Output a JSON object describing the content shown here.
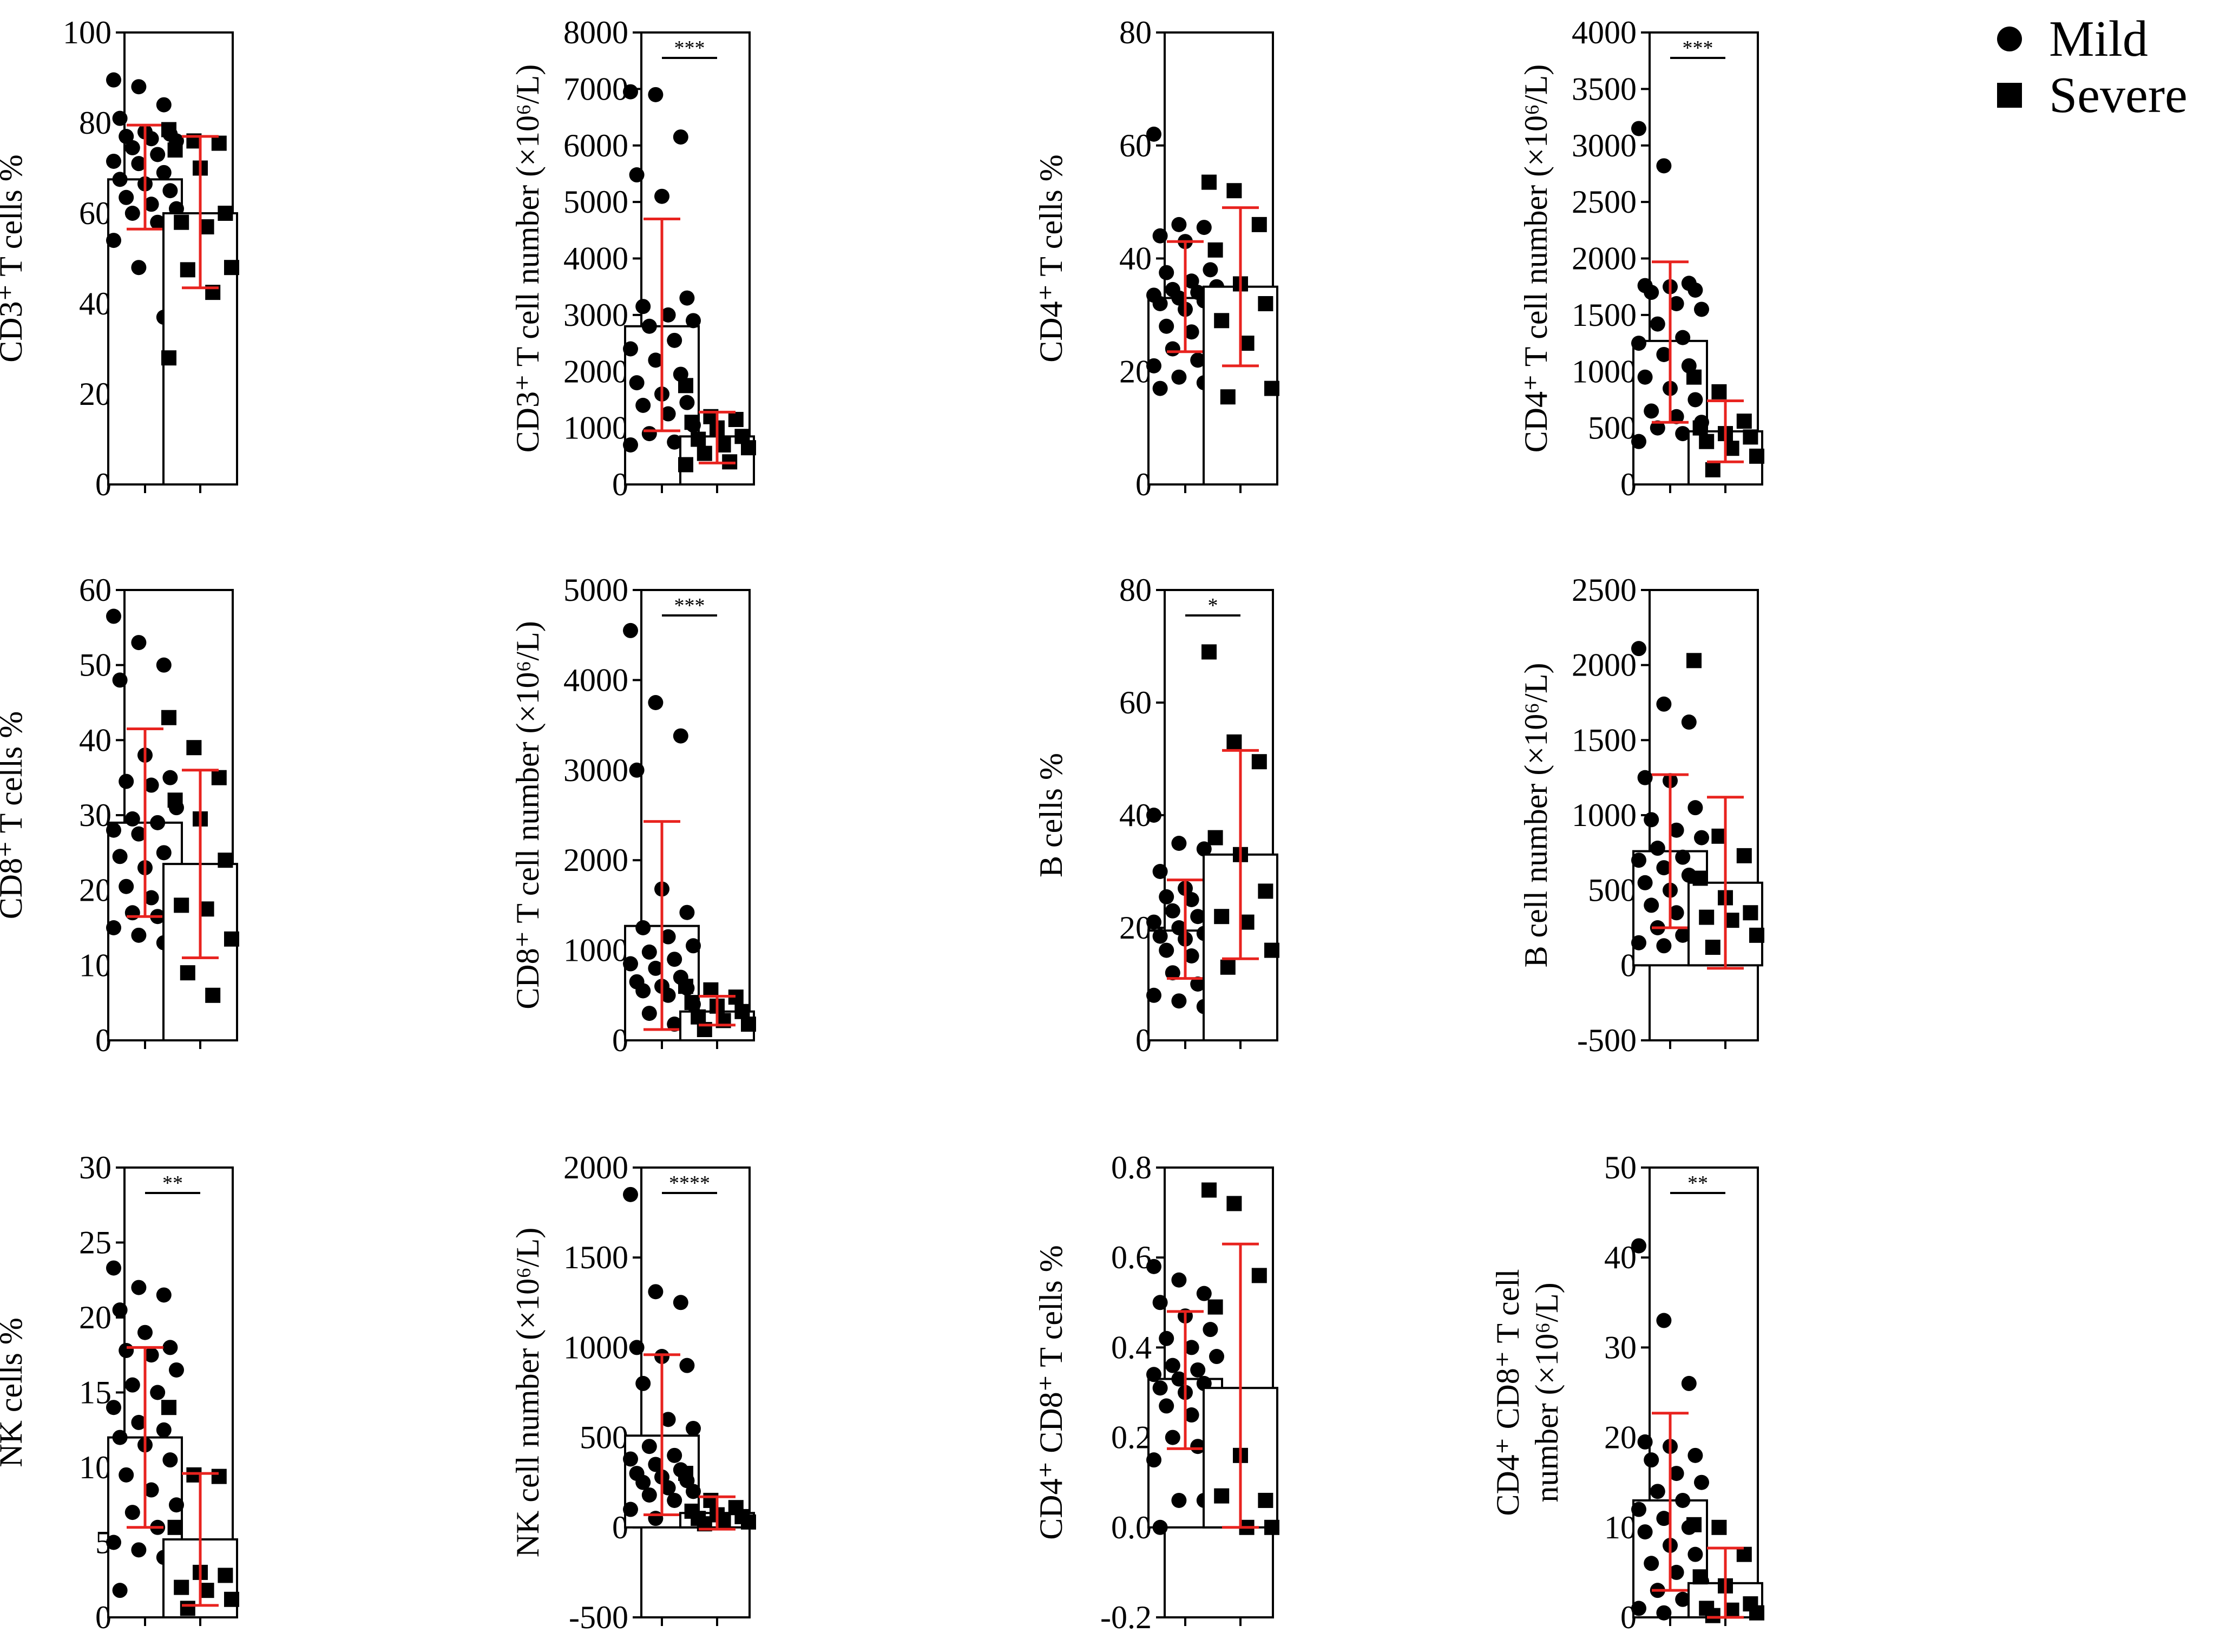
{
  "legend": {
    "mild_label": "Mild",
    "severe_label": "Severe"
  },
  "chart_data": [
    {
      "type": "bar",
      "ylabel": "CD3⁺ T cells %",
      "ylim": [
        0,
        100
      ],
      "ticks": [
        0,
        20,
        40,
        60,
        80,
        100
      ],
      "tick_labels": [
        "0",
        "20",
        "40",
        "60",
        "80",
        "100"
      ],
      "series": [
        {
          "name": "Mild",
          "mean": 67.5,
          "sd_low": 56.5,
          "sd_high": 79.5,
          "points": [
            89.5,
            88,
            84,
            81,
            78,
            77.5,
            77,
            76.5,
            76,
            74.5,
            73,
            71.5,
            71,
            69,
            67.5,
            66.5,
            65,
            63.5,
            62,
            61,
            60,
            58,
            54,
            48,
            37
          ]
        },
        {
          "name": "Severe",
          "mean": 60,
          "sd_low": 43.5,
          "sd_high": 77,
          "points": [
            78.5,
            76,
            75.5,
            74,
            70,
            60,
            58,
            57,
            48,
            47.5,
            42.5,
            28
          ]
        }
      ],
      "significance": ""
    },
    {
      "type": "bar",
      "ylabel": "CD3⁺ T cell number (×10⁶/L)",
      "ylim": [
        0,
        8000
      ],
      "ticks": [
        0,
        1000,
        2000,
        3000,
        4000,
        5000,
        6000,
        7000,
        8000
      ],
      "tick_labels": [
        "0",
        "1000",
        "2000",
        "3000",
        "4000",
        "5000",
        "6000",
        "7000",
        "8000"
      ],
      "series": [
        {
          "name": "Mild",
          "mean": 2800,
          "sd_low": 950,
          "sd_high": 4700,
          "points": [
            6950,
            6900,
            6150,
            5480,
            5100,
            3300,
            3150,
            3000,
            2900,
            2800,
            2550,
            2400,
            2200,
            1950,
            1800,
            1600,
            1450,
            1400,
            1250,
            1050,
            900,
            750,
            700
          ]
        },
        {
          "name": "Severe",
          "mean": 850,
          "sd_low": 380,
          "sd_high": 1280,
          "points": [
            1750,
            1200,
            1150,
            1100,
            1000,
            850,
            800,
            700,
            650,
            550,
            400,
            350
          ]
        }
      ],
      "significance": "***"
    },
    {
      "type": "bar",
      "ylabel": "CD4⁺ T cells %",
      "ylim": [
        0,
        80
      ],
      "ticks": [
        0,
        20,
        40,
        60,
        80
      ],
      "tick_labels": [
        "0",
        "20",
        "40",
        "60",
        "80"
      ],
      "series": [
        {
          "name": "Mild",
          "mean": 33,
          "sd_low": 23.5,
          "sd_high": 43,
          "points": [
            62,
            46,
            45.5,
            44,
            43,
            38,
            37.5,
            36,
            35,
            34.5,
            34,
            33.5,
            33,
            32.5,
            32,
            31,
            30,
            28,
            27,
            25,
            24,
            22,
            21,
            19,
            18,
            17
          ]
        },
        {
          "name": "Severe",
          "mean": 35,
          "sd_low": 21,
          "sd_high": 49,
          "points": [
            53.5,
            52,
            46,
            41.5,
            35.5,
            32,
            29,
            25,
            17,
            15.5
          ]
        }
      ],
      "significance": ""
    },
    {
      "type": "bar",
      "ylabel": "CD4⁺ T cell number (×10⁶/L)",
      "ylim": [
        0,
        4000
      ],
      "ticks": [
        0,
        500,
        1000,
        1500,
        2000,
        2500,
        3000,
        3500,
        4000
      ],
      "tick_labels": [
        "0",
        "500",
        "1000",
        "1500",
        "2000",
        "2500",
        "3000",
        "3500",
        "4000"
      ],
      "series": [
        {
          "name": "Mild",
          "mean": 1270,
          "sd_low": 550,
          "sd_high": 1970,
          "points": [
            3150,
            2820,
            1780,
            1760,
            1750,
            1720,
            1700,
            1600,
            1550,
            1420,
            1300,
            1250,
            1150,
            1050,
            950,
            850,
            750,
            650,
            600,
            550,
            500,
            450,
            380
          ]
        },
        {
          "name": "Severe",
          "mean": 470,
          "sd_low": 200,
          "sd_high": 740,
          "points": [
            950,
            820,
            560,
            500,
            450,
            420,
            380,
            320,
            250,
            130
          ]
        }
      ],
      "significance": "***"
    },
    {
      "type": "bar",
      "ylabel": "CD8⁺ T cells %",
      "ylim": [
        0,
        60
      ],
      "ticks": [
        0,
        10,
        20,
        30,
        40,
        50,
        60
      ],
      "tick_labels": [
        "0",
        "10",
        "20",
        "30",
        "40",
        "50",
        "60"
      ],
      "series": [
        {
          "name": "Mild",
          "mean": 29,
          "sd_low": 16.5,
          "sd_high": 41.5,
          "points": [
            56.5,
            53,
            50,
            48,
            38,
            35,
            34.5,
            34,
            31,
            29.5,
            29,
            28,
            27.5,
            25,
            24.5,
            23,
            22,
            20.5,
            19,
            18,
            17,
            16.5,
            15,
            14,
            13
          ]
        },
        {
          "name": "Severe",
          "mean": 23.5,
          "sd_low": 11,
          "sd_high": 36,
          "points": [
            43,
            39,
            35,
            32,
            29.5,
            24,
            18,
            17.5,
            13.5,
            9,
            6
          ]
        }
      ],
      "significance": ""
    },
    {
      "type": "bar",
      "ylabel": "CD8⁺ T cell number (×10⁶/L)",
      "ylim": [
        0,
        5000
      ],
      "ticks": [
        0,
        1000,
        2000,
        3000,
        4000,
        5000
      ],
      "tick_labels": [
        "0",
        "1000",
        "2000",
        "3000",
        "4000",
        "5000"
      ],
      "series": [
        {
          "name": "Mild",
          "mean": 1270,
          "sd_low": 120,
          "sd_high": 2430,
          "points": [
            4550,
            3750,
            3380,
            3000,
            1680,
            1420,
            1250,
            1150,
            1050,
            980,
            900,
            850,
            800,
            700,
            650,
            600,
            580,
            550,
            500,
            400,
            300,
            180
          ]
        },
        {
          "name": "Severe",
          "mean": 320,
          "sd_low": 170,
          "sd_high": 490,
          "points": [
            600,
            560,
            480,
            420,
            380,
            320,
            260,
            220,
            180,
            120
          ]
        }
      ],
      "significance": "***"
    },
    {
      "type": "bar",
      "ylabel": "B cells %",
      "ylim": [
        0,
        80
      ],
      "ticks": [
        0,
        20,
        40,
        60,
        80
      ],
      "tick_labels": [
        "0",
        "20",
        "40",
        "60",
        "80"
      ],
      "series": [
        {
          "name": "Mild",
          "mean": 19.5,
          "sd_low": 11,
          "sd_high": 28.5,
          "points": [
            40,
            35,
            34,
            30,
            27,
            26,
            25.5,
            25,
            24,
            23,
            22,
            21,
            20,
            19,
            18.5,
            18,
            17,
            16,
            15,
            14,
            12,
            10,
            8,
            7,
            6
          ]
        },
        {
          "name": "Severe",
          "mean": 33,
          "sd_low": 14.5,
          "sd_high": 51.5,
          "points": [
            69,
            53,
            49.5,
            36,
            33,
            26.5,
            22,
            21,
            16,
            13
          ]
        }
      ],
      "significance": "*"
    },
    {
      "type": "bar",
      "ylabel": "B cell number (×10⁶/L)",
      "ylim": [
        -500,
        2500
      ],
      "ticks": [
        -500,
        0,
        500,
        1000,
        1500,
        2000,
        2500
      ],
      "tick_labels": [
        "-500",
        "0",
        "500",
        "1000",
        "1500",
        "2000",
        "2500"
      ],
      "series": [
        {
          "name": "Mild",
          "mean": 760,
          "sd_low": 250,
          "sd_high": 1270,
          "points": [
            2110,
            1740,
            1620,
            1250,
            1230,
            1050,
            970,
            900,
            850,
            780,
            720,
            700,
            650,
            600,
            550,
            500,
            450,
            400,
            350,
            330,
            250,
            200,
            150,
            130
          ]
        },
        {
          "name": "Severe",
          "mean": 550,
          "sd_low": -20,
          "sd_high": 1120,
          "points": [
            2030,
            860,
            730,
            580,
            450,
            350,
            320,
            300,
            200,
            120
          ]
        }
      ],
      "significance": ""
    },
    {
      "type": "bar",
      "ylabel": "NK cells %",
      "ylim": [
        0,
        30
      ],
      "ticks": [
        0,
        5,
        10,
        15,
        20,
        25,
        30
      ],
      "tick_labels": [
        "0",
        "5",
        "10",
        "15",
        "20",
        "25",
        "30"
      ],
      "series": [
        {
          "name": "Mild",
          "mean": 12,
          "sd_low": 6,
          "sd_high": 18,
          "points": [
            23.3,
            22,
            21.5,
            20.5,
            19,
            18,
            17.8,
            17.5,
            16.5,
            15.5,
            15,
            14,
            13,
            12.5,
            12,
            11.5,
            10.5,
            9.5,
            8.5,
            7.5,
            7,
            6,
            5,
            4.5,
            4,
            1.8
          ]
        },
        {
          "name": "Severe",
          "mean": 5.2,
          "sd_low": 0.8,
          "sd_high": 9.6,
          "points": [
            14,
            9.5,
            9.4,
            6,
            3,
            2.8,
            2,
            1.8,
            1.2,
            0.6
          ]
        }
      ],
      "significance": "**"
    },
    {
      "type": "bar",
      "ylabel": "NK cell number (×10⁶/L)",
      "ylim": [
        -500,
        2000
      ],
      "ticks": [
        -500,
        0,
        500,
        1000,
        1500,
        2000
      ],
      "tick_labels": [
        "-500",
        "0",
        "500",
        "1000",
        "1500",
        "2000"
      ],
      "series": [
        {
          "name": "Mild",
          "mean": 510,
          "sd_low": 70,
          "sd_high": 960,
          "points": [
            1850,
            1310,
            1250,
            1000,
            950,
            900,
            800,
            600,
            550,
            450,
            400,
            380,
            350,
            320,
            300,
            280,
            260,
            250,
            220,
            200,
            180,
            150,
            100,
            50
          ]
        },
        {
          "name": "Severe",
          "mean": 80,
          "sd_low": -10,
          "sd_high": 170,
          "points": [
            300,
            150,
            110,
            90,
            70,
            60,
            50,
            40,
            30,
            20
          ]
        }
      ],
      "significance": "****"
    },
    {
      "type": "bar",
      "ylabel": "CD4⁺ CD8⁺ T cells %",
      "ylim": [
        -0.2,
        0.8
      ],
      "ticks": [
        -0.2,
        0,
        0.2,
        0.4,
        0.6,
        0.8
      ],
      "tick_labels": [
        "-0.2",
        "0.0",
        "0.2",
        "0.4",
        "0.6",
        "0.8"
      ],
      "series": [
        {
          "name": "Mild",
          "mean": 0.33,
          "sd_low": 0.175,
          "sd_high": 0.48,
          "points": [
            0.58,
            0.55,
            0.52,
            0.5,
            0.47,
            0.44,
            0.42,
            0.4,
            0.38,
            0.36,
            0.35,
            0.34,
            0.33,
            0.32,
            0.31,
            0.3,
            0.29,
            0.27,
            0.25,
            0.23,
            0.2,
            0.18,
            0.15,
            0.06,
            0.06,
            0.0
          ]
        },
        {
          "name": "Severe",
          "mean": 0.31,
          "sd_low": 0.0,
          "sd_high": 0.63,
          "points": [
            0.75,
            0.72,
            0.56,
            0.49,
            0.16,
            0.06,
            0.07,
            0.0,
            0.0
          ]
        }
      ],
      "significance": ""
    },
    {
      "type": "bar",
      "ylabel_line1": "CD4⁺ CD8⁺ T cell",
      "ylabel_line2": "number (×10⁶/L)",
      "ylim": [
        0,
        50
      ],
      "ticks": [
        0,
        10,
        20,
        30,
        40,
        50
      ],
      "tick_labels": [
        "0",
        "10",
        "20",
        "30",
        "40",
        "50"
      ],
      "series": [
        {
          "name": "Mild",
          "mean": 13,
          "sd_low": 3,
          "sd_high": 22.7,
          "points": [
            41.3,
            33,
            26,
            19.5,
            19,
            18,
            17.5,
            16,
            15,
            14,
            13,
            12,
            11,
            10,
            9.5,
            8,
            7,
            6,
            5,
            4,
            3,
            2,
            1,
            0.5
          ]
        },
        {
          "name": "Severe",
          "mean": 3.8,
          "sd_low": 0,
          "sd_high": 7.7,
          "points": [
            10.3,
            10,
            7,
            4.5,
            3.5,
            1.5,
            1,
            0.8,
            0.5,
            0.2
          ]
        }
      ],
      "significance": "**"
    }
  ]
}
